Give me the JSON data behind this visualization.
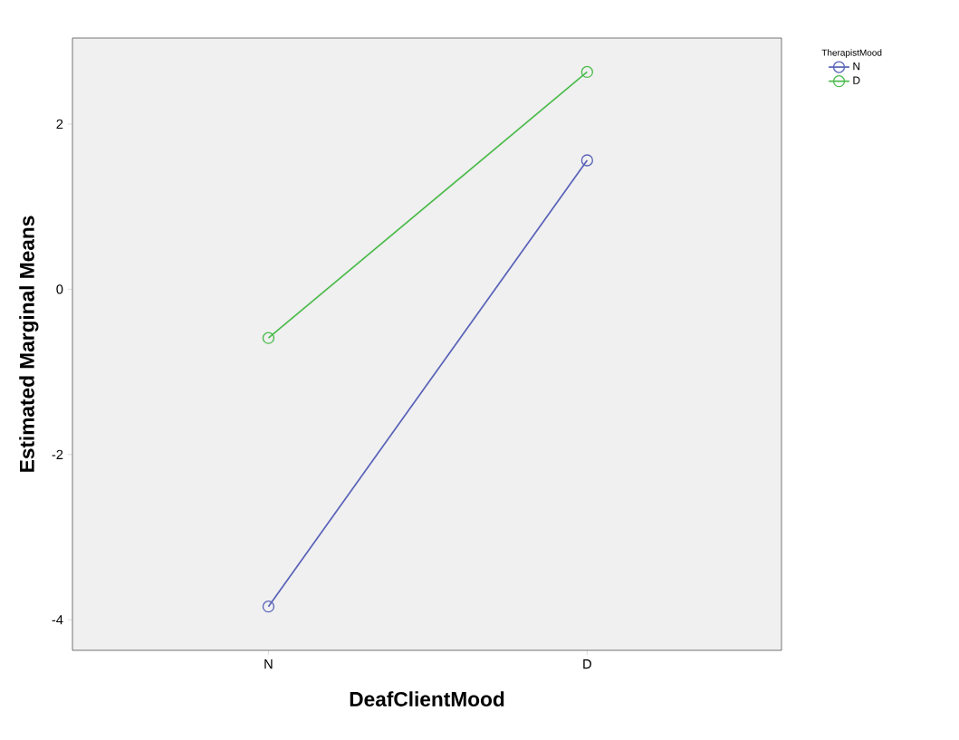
{
  "chart_data": {
    "type": "line",
    "xlabel": "DeafClientMood",
    "ylabel": "Estimated Marginal Means",
    "legend_title": "TherapistMood",
    "categories": [
      "N",
      "D"
    ],
    "series": [
      {
        "name": "N",
        "color": "#5a63b8",
        "values": [
          -3.84,
          1.56
        ]
      },
      {
        "name": "D",
        "color": "#4cbb4c",
        "values": [
          -0.59,
          2.63
        ]
      }
    ],
    "ylim": [
      -4.37,
      3.04
    ],
    "yticks": [
      -4,
      -2,
      0,
      2
    ],
    "legend": "top right",
    "marker": "circle",
    "grid": false
  }
}
